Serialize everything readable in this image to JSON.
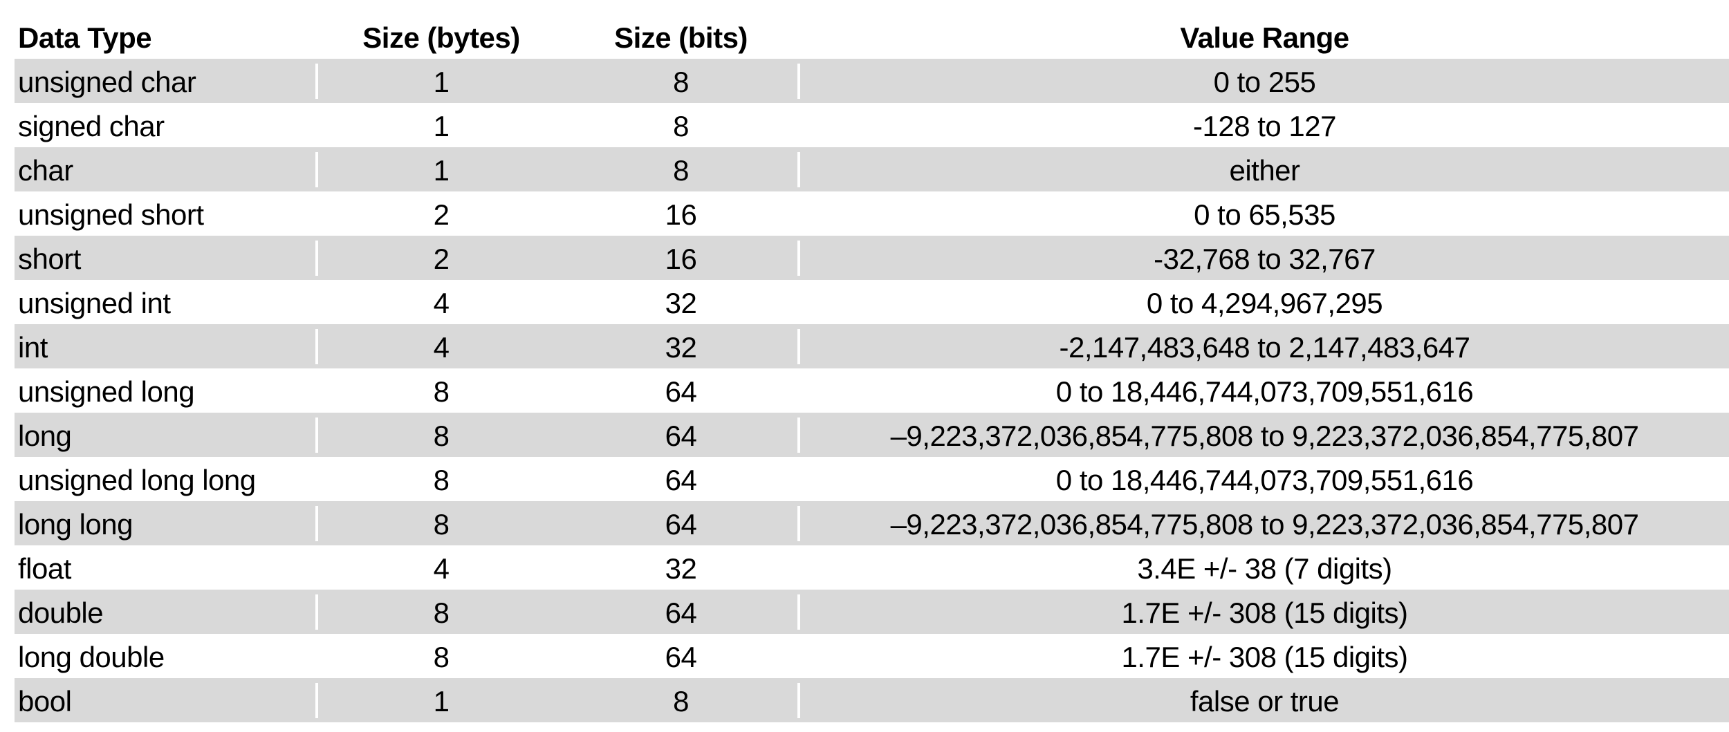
{
  "chart_data": {
    "type": "table",
    "columns": [
      "Data Type",
      "Size (bytes)",
      "Size (bits)",
      "Value Range"
    ],
    "rows": [
      {
        "data_type": "unsigned char",
        "size_bytes": "1",
        "size_bits": "8",
        "value_range": "0 to 255"
      },
      {
        "data_type": "signed char",
        "size_bytes": "1",
        "size_bits": "8",
        "value_range": "-128 to 127"
      },
      {
        "data_type": "char",
        "size_bytes": "1",
        "size_bits": "8",
        "value_range": "either"
      },
      {
        "data_type": "unsigned short",
        "size_bytes": "2",
        "size_bits": "16",
        "value_range": "0 to 65,535"
      },
      {
        "data_type": "short",
        "size_bytes": "2",
        "size_bits": "16",
        "value_range": "-32,768 to 32,767"
      },
      {
        "data_type": "unsigned int",
        "size_bytes": "4",
        "size_bits": "32",
        "value_range": "0 to 4,294,967,295"
      },
      {
        "data_type": "int",
        "size_bytes": "4",
        "size_bits": "32",
        "value_range": "-2,147,483,648 to 2,147,483,647"
      },
      {
        "data_type": "unsigned long",
        "size_bytes": "8",
        "size_bits": "64",
        "value_range": "0 to 18,446,744,073,709,551,616"
      },
      {
        "data_type": "long",
        "size_bytes": "8",
        "size_bits": "64",
        "value_range": "–9,223,372,036,854,775,808 to 9,223,372,036,854,775,807"
      },
      {
        "data_type": "unsigned long long",
        "size_bytes": "8",
        "size_bits": "64",
        "value_range": "0 to 18,446,744,073,709,551,616"
      },
      {
        "data_type": "long long",
        "size_bytes": "8",
        "size_bits": "64",
        "value_range": "–9,223,372,036,854,775,808 to 9,223,372,036,854,775,807"
      },
      {
        "data_type": "float",
        "size_bytes": "4",
        "size_bits": "32",
        "value_range": "3.4E +/- 38 (7 digits)"
      },
      {
        "data_type": "double",
        "size_bytes": "8",
        "size_bits": "64",
        "value_range": "1.7E +/- 308 (15 digits)"
      },
      {
        "data_type": "long double",
        "size_bytes": "8",
        "size_bits": "64",
        "value_range": "1.7E +/- 308 (15 digits)"
      },
      {
        "data_type": "bool",
        "size_bytes": "1",
        "size_bits": "8",
        "value_range": "false or true"
      }
    ],
    "layout": {
      "striped_rows": true,
      "first_data_row_shaded": true,
      "grid": "off",
      "header_bold": true
    }
  },
  "styles": {
    "row_shade": "#d9d9d9",
    "text_color": "#000000",
    "background": "#ffffff"
  }
}
